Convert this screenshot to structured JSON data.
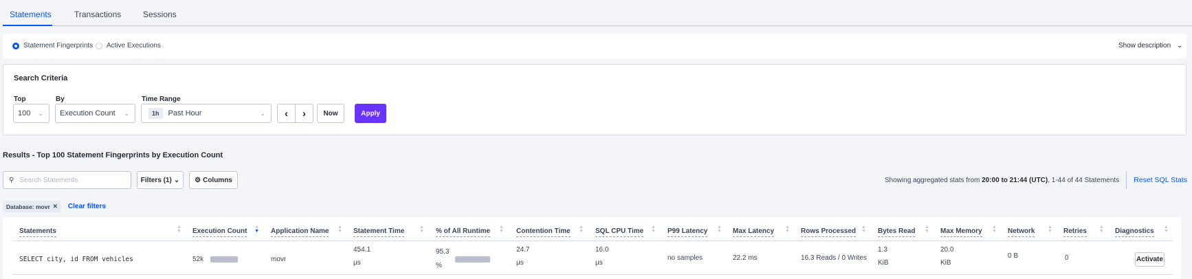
{
  "tabs": [
    {
      "label": "Statements",
      "active": true
    },
    {
      "label": "Transactions"
    },
    {
      "label": "Sessions"
    }
  ],
  "view": {
    "options": [
      "Statement Fingerprints",
      "Active Executions"
    ],
    "selected": "Statement Fingerprints",
    "show_description": "Show description"
  },
  "search_criteria": {
    "title": "Search Criteria",
    "top_label": "Top",
    "top_value": "100",
    "by_label": "By",
    "by_value": "Execution Count",
    "time_label": "Time Range",
    "time_badge": "1h",
    "time_value": "Past Hour",
    "now": "Now",
    "apply": "Apply"
  },
  "results": {
    "title": "Results - Top 100 Statement Fingerprints by Execution Count",
    "search_placeholder": "Search Statements",
    "filters": "Filters (1)",
    "columns": "Columns",
    "summary_prefix": "Showing aggregated stats from ",
    "summary_bold": "20:00 to 21:44 (UTC)",
    "summary_suffix": ", 1-44 of 44 Statements",
    "reset": "Reset SQL Stats",
    "chip": "Database: movr",
    "clear_filters": "Clear filters"
  },
  "table": {
    "headers": [
      "Statements",
      "Execution Count",
      "Application Name",
      "Statement Time",
      "% of All Runtime",
      "Contention Time",
      "SQL CPU Time",
      "P99 Latency",
      "Max Latency",
      "Rows Processed",
      "Bytes Read",
      "Max Memory",
      "Network",
      "Retries",
      "Diagnostics"
    ],
    "sorted_column": "Execution Count",
    "rows": [
      {
        "statement": "SELECT city, id FROM vehicles",
        "exec_count": "52k",
        "exec_fraction": 1.0,
        "app": "movr",
        "stmt_time": "454.1",
        "stmt_time_unit": "µs",
        "runtime": "95.3",
        "runtime_unit": "%",
        "runtime_fraction": 0.953,
        "contention": "24.7",
        "contention_unit": "µs",
        "cpu": "16.0",
        "cpu_unit": "µs",
        "p99": "no samples",
        "max_latency": "22.2 ms",
        "rows": "16.3 Reads / 0 Writes",
        "bytes_read": "1.3",
        "bytes_read_unit": "KiB",
        "max_memory": "20.0",
        "max_memory_unit": "KiB",
        "network": "0 B",
        "retries": "0",
        "diagnostics": "Activate"
      }
    ]
  },
  "colors": {
    "accent": "#0055ff",
    "apply": "#6933ff",
    "bar": "#b8bdd0"
  }
}
